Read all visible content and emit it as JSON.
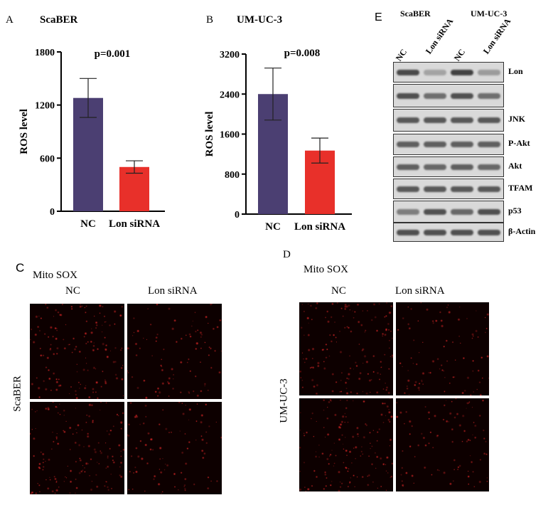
{
  "panel_a": {
    "letter": "A",
    "title": "ScaBER"
  },
  "panel_b": {
    "letter": "B",
    "title": "UM-UC-3"
  },
  "panel_c": {
    "letter": "C",
    "title": "Mito SOX",
    "col_nc": "NC",
    "col_lon": "Lon siRNA",
    "row_label": "ScaBER"
  },
  "panel_d": {
    "letter": "D",
    "title": "Mito SOX",
    "col_nc": "NC",
    "col_lon": "Lon siRNA",
    "row_label": "UM-UC-3"
  },
  "panel_e": {
    "letter": "E",
    "group1": "ScaBER",
    "group2": "UM-UC-3",
    "lanes": [
      "NC",
      "Lon siRNA",
      "NC",
      "Lon siRNA"
    ],
    "rows": [
      {
        "label": "Lon",
        "intensity": [
          0.85,
          0.25,
          0.9,
          0.3
        ]
      },
      {
        "label": "",
        "intensity": [
          0.8,
          0.6,
          0.8,
          0.6
        ]
      },
      {
        "label": "JNK",
        "intensity": [
          0.75,
          0.75,
          0.75,
          0.75
        ]
      },
      {
        "label": "P-Akt",
        "intensity": [
          0.7,
          0.7,
          0.7,
          0.7
        ]
      },
      {
        "label": "Akt",
        "intensity": [
          0.7,
          0.65,
          0.7,
          0.65
        ]
      },
      {
        "label": "TFAM",
        "intensity": [
          0.75,
          0.75,
          0.75,
          0.75
        ]
      },
      {
        "label": "p53",
        "intensity": [
          0.5,
          0.8,
          0.65,
          0.8
        ]
      },
      {
        "label": "β-Actin",
        "intensity": [
          0.8,
          0.8,
          0.8,
          0.8
        ]
      }
    ]
  },
  "chart_data": [
    {
      "type": "bar",
      "title": "ScaBER",
      "ylabel": "ROS level",
      "categories": [
        "NC",
        "Lon siRNA"
      ],
      "values": [
        1280,
        500
      ],
      "errors": [
        220,
        70
      ],
      "colors": [
        "#4b3f72",
        "#e8302a"
      ],
      "ylim": [
        0,
        1800
      ],
      "yticks": [
        "0",
        "600",
        "1200",
        "1800"
      ],
      "annotation": "p=0.001"
    },
    {
      "type": "bar",
      "title": "UM-UC-3",
      "ylabel": "ROS level",
      "categories": [
        "NC",
        "Lon siRNA"
      ],
      "values": [
        2400,
        1270
      ],
      "errors": [
        520,
        250
      ],
      "colors": [
        "#4b3f72",
        "#e8302a"
      ],
      "ylim": [
        0,
        3200
      ],
      "yticks": [
        "0",
        "800",
        "1600",
        "2400",
        "3200"
      ],
      "annotation": "p=0.008"
    }
  ]
}
